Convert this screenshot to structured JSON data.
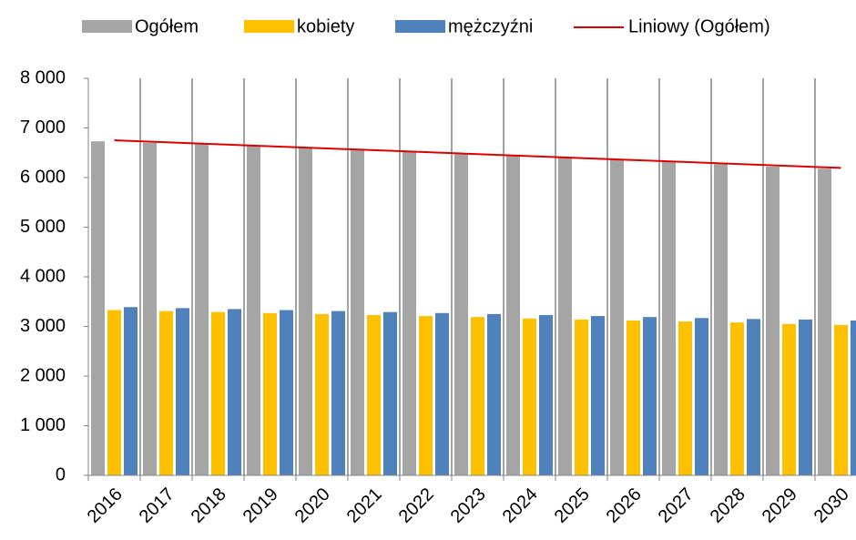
{
  "chart_data": {
    "type": "bar",
    "categories": [
      "2016",
      "2017",
      "2018",
      "2019",
      "2020",
      "2021",
      "2022",
      "2023",
      "2024",
      "2025",
      "2026",
      "2027",
      "2028",
      "2029",
      "2030"
    ],
    "series": [
      {
        "name": "Ogółem",
        "color": "#a5a5a5",
        "values": [
          6730,
          6700,
          6670,
          6640,
          6600,
          6560,
          6520,
          6480,
          6440,
          6400,
          6360,
          6320,
          6270,
          6220,
          6180
        ],
        "trendline": {
          "name": "Liniowy (Ogółem)",
          "color": "#e00000",
          "type": "linear"
        }
      },
      {
        "name": "kobiety",
        "color": "#ffc000",
        "values": [
          3330,
          3310,
          3290,
          3270,
          3250,
          3230,
          3210,
          3190,
          3160,
          3140,
          3120,
          3100,
          3080,
          3050,
          3030
        ]
      },
      {
        "name": "mężczyźni",
        "color": "#4f81bd",
        "values": [
          3390,
          3370,
          3350,
          3330,
          3310,
          3290,
          3270,
          3250,
          3230,
          3210,
          3190,
          3170,
          3150,
          3140,
          3120
        ]
      }
    ],
    "ylim": [
      0,
      8000
    ],
    "yticks": [
      0,
      {
        "value": 1000,
        "label": "1 000"
      },
      {
        "value": 2000,
        "label": "2 000"
      },
      {
        "value": 3000,
        "label": "3 000"
      },
      {
        "value": 4000,
        "label": "4 000"
      },
      {
        "value": 5000,
        "label": "5 000"
      },
      {
        "value": 6000,
        "label": "6 000"
      },
      {
        "value": 7000,
        "label": "7 000"
      },
      {
        "value": 8000,
        "label": "8 000"
      }
    ],
    "grid": "x",
    "legend": "top"
  }
}
